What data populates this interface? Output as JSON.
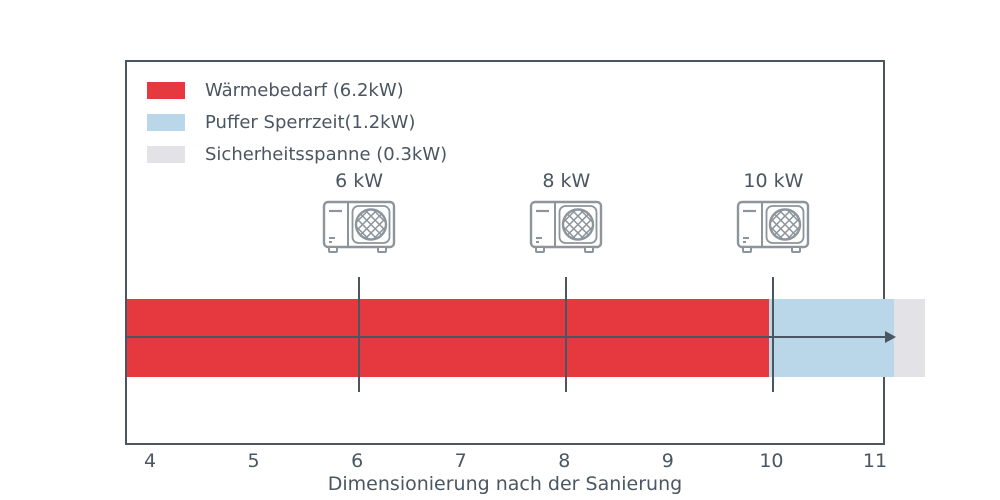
{
  "chart_data": {
    "type": "bar",
    "orientation": "horizontal-stacked",
    "xlabel": "Dimensionierung nach der Sanierung",
    "x_ticks": [
      4,
      5,
      6,
      7,
      8,
      9,
      10,
      11
    ],
    "x_range": [
      3.76,
      11.1
    ],
    "grid": false,
    "legend_position": "upper-left",
    "axis_color": "#4a5662",
    "icon_color": "#8c959c",
    "segments": [
      {
        "id": "waermebedarf",
        "label": "Wärmebedarf (6.2kW)",
        "value": 6.2,
        "color": "#e5383f"
      },
      {
        "id": "puffer-sperrzeit",
        "label": "Puffer Sperrzeit(1.2kW)",
        "value": 1.2,
        "color": "#b9d7e8"
      },
      {
        "id": "sicherheitsspanne",
        "label": "Sicherheitsspanne (0.3kW)",
        "value": 0.3,
        "color": "#e2e2e7"
      }
    ],
    "markers": [
      {
        "id": "pump-6kw",
        "label": "6 kW",
        "value": 6
      },
      {
        "id": "pump-8kw",
        "label": "8 kW",
        "value": 8
      },
      {
        "id": "pump-10kw",
        "label": "10 kW",
        "value": 10
      }
    ]
  }
}
